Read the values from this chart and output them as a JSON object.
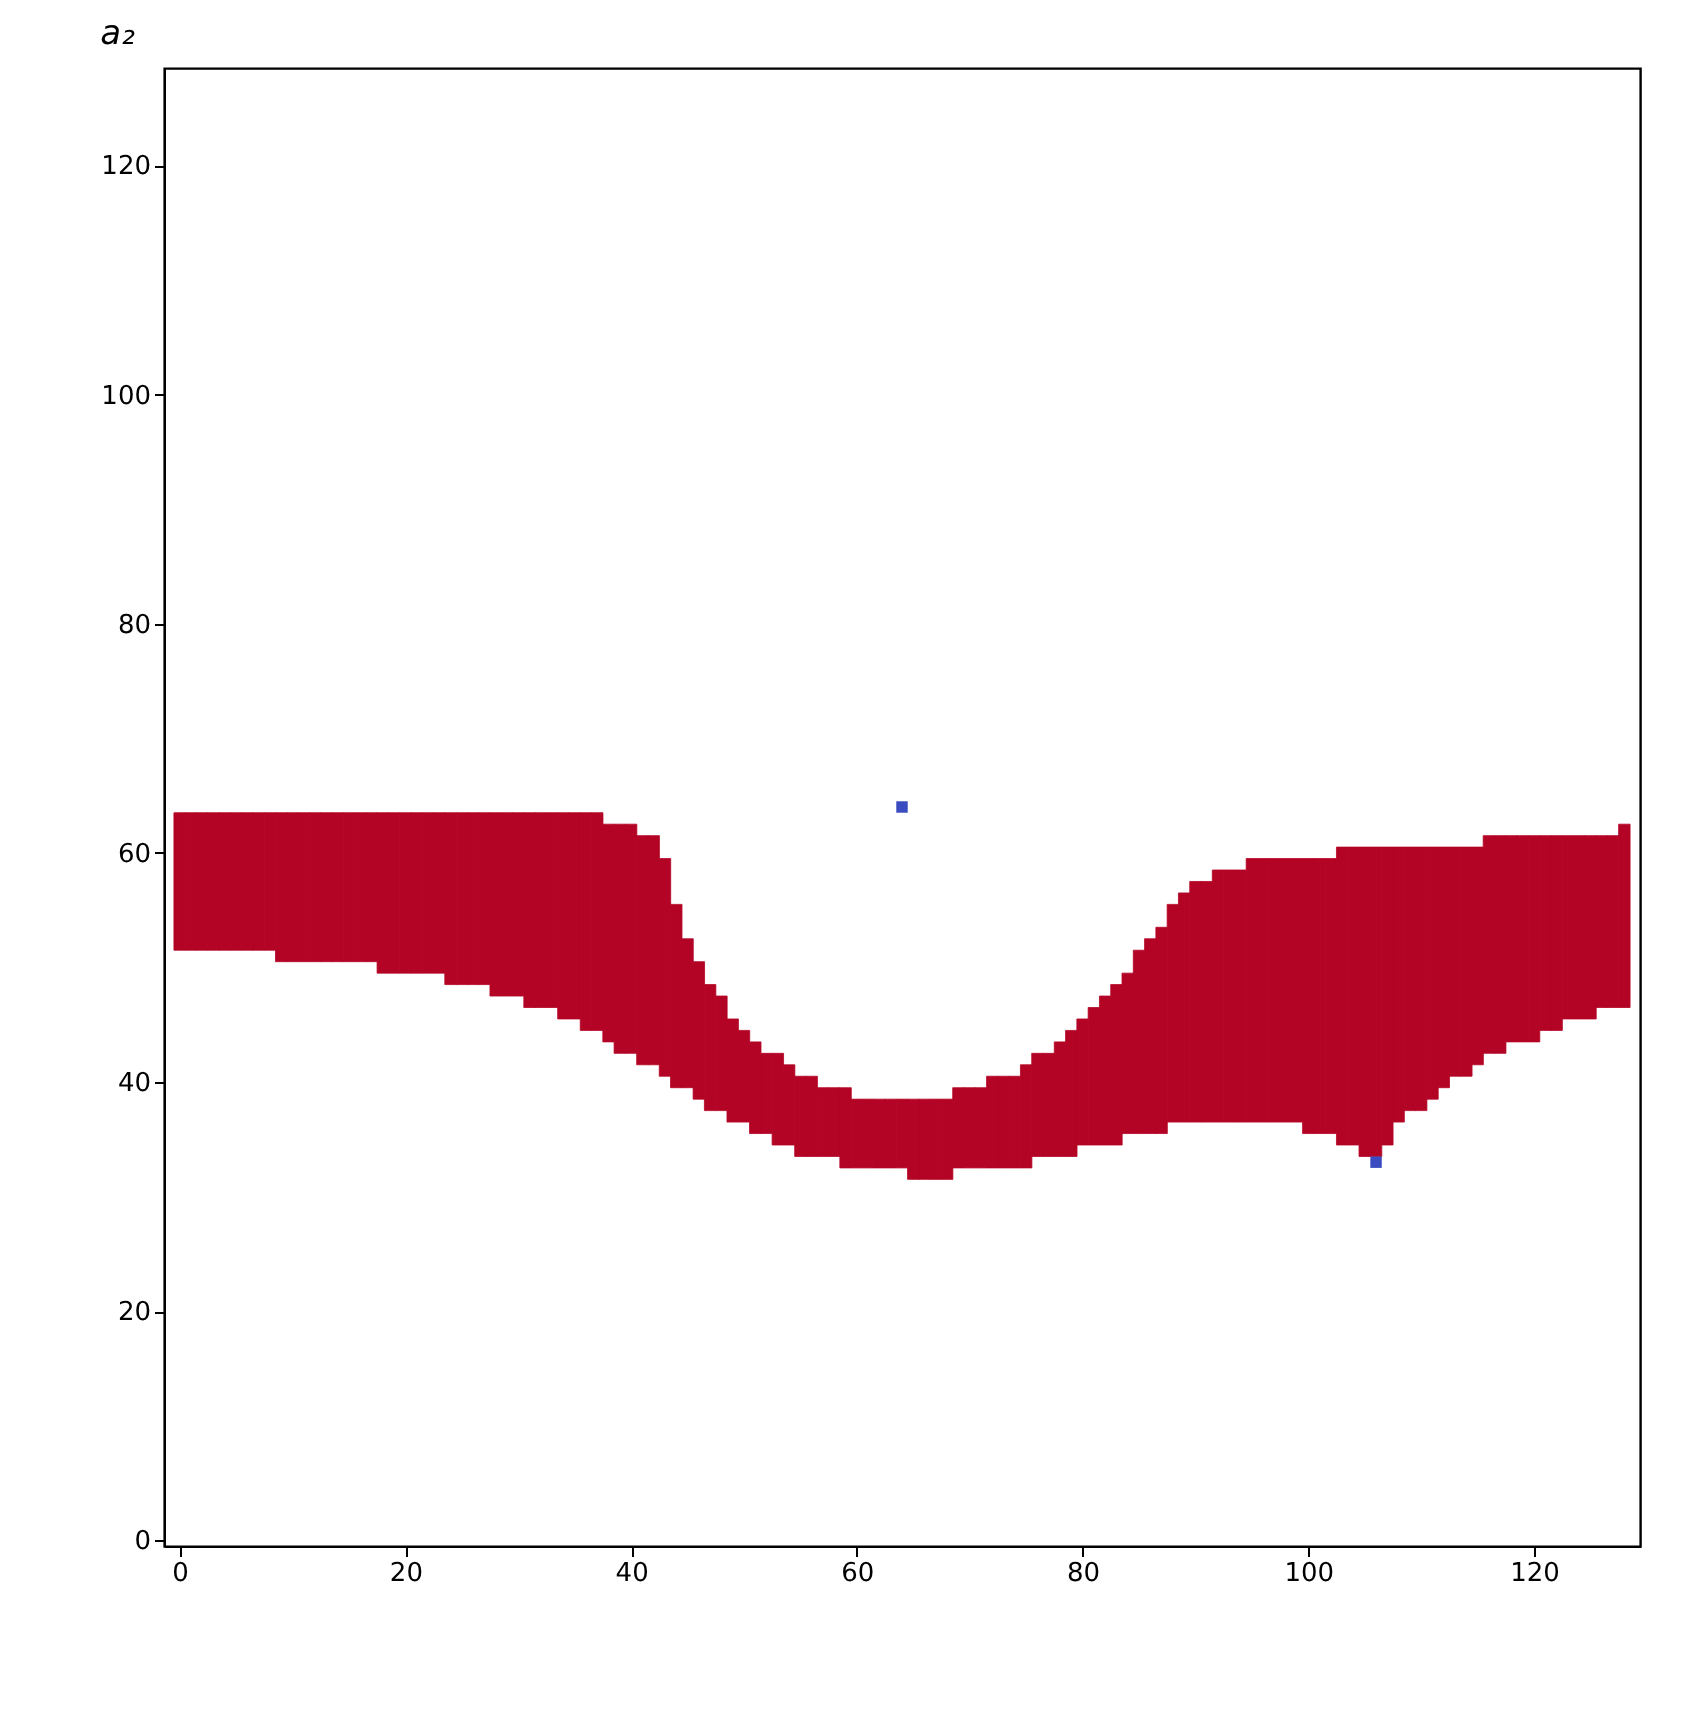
{
  "chart_data": {
    "type": "bar",
    "title": "a₂",
    "xlim": [
      -0.5,
      128.5
    ],
    "ylim": [
      -0.5,
      128.5
    ],
    "xticks": [
      0,
      20,
      40,
      60,
      80,
      100,
      120
    ],
    "yticks": [
      0,
      20,
      40,
      60,
      80,
      100,
      120
    ],
    "x": [
      0,
      1,
      2,
      3,
      4,
      5,
      6,
      7,
      8,
      9,
      10,
      11,
      12,
      13,
      14,
      15,
      16,
      17,
      18,
      19,
      20,
      21,
      22,
      23,
      24,
      25,
      26,
      27,
      28,
      29,
      30,
      31,
      32,
      33,
      34,
      35,
      36,
      37,
      38,
      39,
      40,
      41,
      42,
      43,
      44,
      45,
      46,
      47,
      48,
      49,
      50,
      51,
      52,
      53,
      54,
      55,
      56,
      57,
      58,
      59,
      60,
      61,
      62,
      63,
      64,
      65,
      66,
      67,
      68,
      69,
      70,
      71,
      72,
      73,
      74,
      75,
      76,
      77,
      78,
      79,
      80,
      81,
      82,
      83,
      84,
      85,
      86,
      87,
      88,
      89,
      90,
      91,
      92,
      93,
      94,
      95,
      96,
      97,
      98,
      99,
      100,
      101,
      102,
      103,
      104,
      105,
      106,
      107,
      108,
      109,
      110,
      111,
      112,
      113,
      114,
      115,
      116,
      117,
      118,
      119,
      120,
      121,
      122,
      123,
      124,
      125,
      126,
      127,
      128
    ],
    "series": [
      {
        "color": "#b40426",
        "base": [
          51.5,
          51.5,
          51.5,
          51.5,
          51.5,
          51.5,
          51.5,
          51.5,
          51.5,
          50.5,
          50.5,
          50.5,
          50.5,
          50.5,
          50.5,
          50.5,
          50.5,
          50.5,
          49.5,
          49.5,
          49.5,
          49.5,
          49.5,
          49.5,
          48.5,
          48.5,
          48.5,
          48.5,
          47.5,
          47.5,
          47.5,
          46.5,
          46.5,
          46.5,
          45.5,
          45.5,
          44.5,
          44.5,
          43.5,
          42.5,
          42.5,
          41.5,
          41.5,
          40.5,
          39.5,
          39.5,
          38.5,
          37.5,
          37.5,
          36.5,
          36.5,
          35.5,
          35.5,
          34.5,
          34.5,
          33.5,
          33.5,
          33.5,
          33.5,
          32.5,
          32.5,
          32.5,
          32.5,
          32.5,
          32.5,
          31.5,
          31.5,
          31.5,
          31.5,
          32.5,
          32.5,
          32.5,
          32.5,
          32.5,
          32.5,
          32.5,
          33.5,
          33.5,
          33.5,
          33.5,
          34.5,
          34.5,
          34.5,
          34.5,
          35.5,
          35.5,
          35.5,
          35.5,
          36.5,
          36.5,
          36.5,
          36.5,
          36.5,
          36.5,
          36.5,
          36.5,
          36.5,
          36.5,
          36.5,
          36.5,
          35.5,
          35.5,
          35.5,
          34.5,
          34.5,
          33.5,
          33.5,
          34.5,
          36.5,
          37.5,
          37.5,
          38.5,
          39.5,
          40.5,
          40.5,
          41.5,
          42.5,
          42.5,
          43.5,
          43.5,
          43.5,
          44.5,
          44.5,
          45.5,
          45.5,
          45.5,
          46.5,
          46.5,
          46.5
        ],
        "values": [
          12,
          12,
          12,
          12,
          12,
          12,
          12,
          12,
          12,
          13,
          13,
          13,
          13,
          13,
          13,
          13,
          13,
          13,
          14,
          14,
          14,
          14,
          14,
          14,
          15,
          15,
          15,
          15,
          16,
          16,
          16,
          17,
          17,
          17,
          18,
          18,
          19,
          19,
          19,
          20,
          20,
          20,
          20,
          19,
          16,
          13,
          12,
          11,
          10,
          9,
          8,
          8,
          7,
          8,
          7,
          7,
          7,
          6,
          6,
          7,
          6,
          6,
          6,
          6,
          6,
          7,
          7,
          7,
          7,
          7,
          7,
          7,
          8,
          8,
          8,
          9,
          9,
          9,
          10,
          11,
          11,
          12,
          13,
          14,
          14,
          16,
          17,
          18,
          19,
          20,
          21,
          21,
          22,
          22,
          22,
          23,
          23,
          23,
          23,
          23,
          24,
          24,
          24,
          26,
          26,
          27,
          27,
          26,
          24,
          23,
          23,
          22,
          21,
          20,
          20,
          19,
          19,
          19,
          18,
          18,
          18,
          17,
          17,
          16,
          16,
          16,
          15,
          15,
          16
        ]
      },
      {
        "type": "scatter",
        "color": "#3b4cc0",
        "marker": "square",
        "x": [
          64,
          106
        ],
        "values": [
          64,
          33
        ]
      }
    ]
  }
}
